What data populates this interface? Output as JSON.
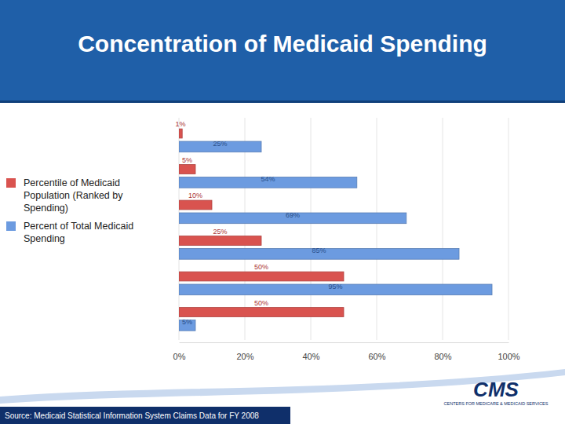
{
  "chart_data": {
    "type": "bar",
    "orientation": "horizontal",
    "title": "Concentration of Medicaid Spending",
    "categories": [
      null,
      null,
      null,
      null,
      null,
      null
    ],
    "series": [
      {
        "name": "Percentile of Medicaid Population (Ranked by Spending)",
        "color": "#d9534f",
        "values": [
          1,
          5,
          10,
          25,
          50,
          50
        ],
        "value_labels": [
          "1%",
          "5%",
          "10%",
          "25%",
          "50%",
          "50%"
        ]
      },
      {
        "name": "Percent of Total Medicaid Spending",
        "color": "#6c9be0",
        "values": [
          25,
          54,
          69,
          85,
          95,
          5
        ],
        "value_labels": [
          "25%",
          "54%",
          "69%",
          "85%",
          "95%",
          "5%"
        ]
      }
    ],
    "xlim": [
      0,
      100
    ],
    "xticks": [
      {
        "value": 0,
        "label": "0%"
      },
      {
        "value": 20,
        "label": "20%"
      },
      {
        "value": 40,
        "label": "40%"
      },
      {
        "value": 60,
        "label": "60%"
      },
      {
        "value": 80,
        "label": "80%"
      },
      {
        "value": 100,
        "label": "100%"
      }
    ],
    "grid": true,
    "data_labels": true,
    "legend": "left",
    "source": "Source: Medicaid Statistical Information System Claims Data for FY 2008",
    "annotations": [
      "CMS",
      "CENTERS FOR MEDICARE & MEDICAID SERVICES"
    ]
  }
}
